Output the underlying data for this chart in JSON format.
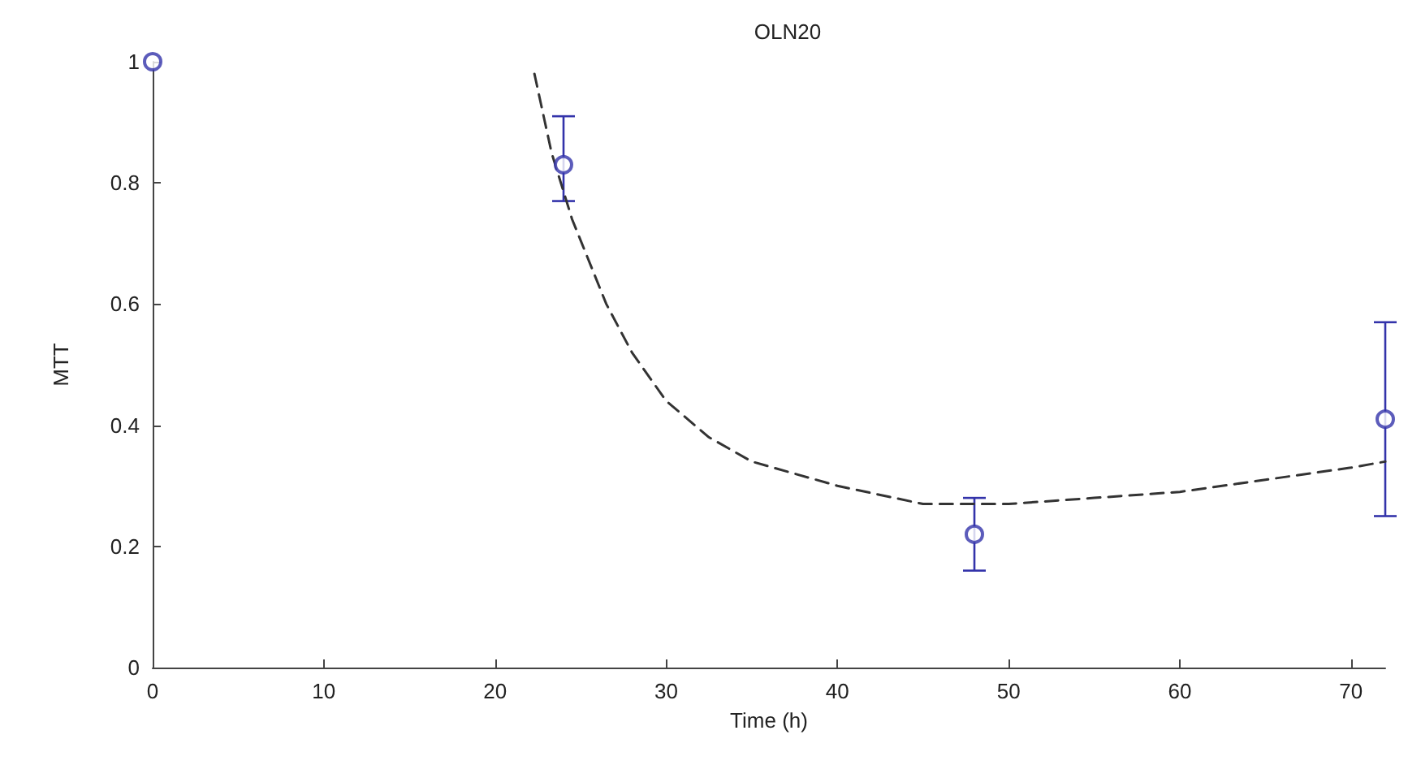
{
  "chart_data": {
    "type": "scatter",
    "title": "OLN20",
    "xlabel": "Time (h)",
    "ylabel": "MTT",
    "series": [
      {
        "color": "#3333aa",
        "marker": "circle",
        "x": [
          0,
          24,
          48,
          72
        ],
        "values": [
          1,
          0.83,
          0.22,
          0.41
        ],
        "errors": [
          null,
          [
            0.77,
            0.91
          ],
          [
            0.16,
            0.28
          ],
          [
            0.25,
            0.57
          ]
        ]
      },
      {
        "type": "line",
        "color": "#333333",
        "line_style": "dashed",
        "marker": "none",
        "x": [
          22.3,
          23.3,
          24.5,
          26.5,
          28,
          30,
          32.5,
          35,
          40,
          45,
          50,
          55,
          60,
          65,
          70,
          72
        ],
        "values": [
          0.98,
          0.85,
          0.74,
          0.6,
          0.52,
          0.44,
          0.38,
          0.34,
          0.3,
          0.27,
          0.27,
          0.28,
          0.29,
          0.31,
          0.33,
          0.34
        ]
      }
    ],
    "xlim": [
      0,
      72
    ],
    "xticks": [
      0,
      10,
      20,
      30,
      40,
      50,
      60,
      70
    ],
    "ylim": [
      0,
      1
    ],
    "yticks": [
      0,
      0.2,
      0.4,
      0.6,
      0.8,
      1
    ],
    "grid": false
  }
}
